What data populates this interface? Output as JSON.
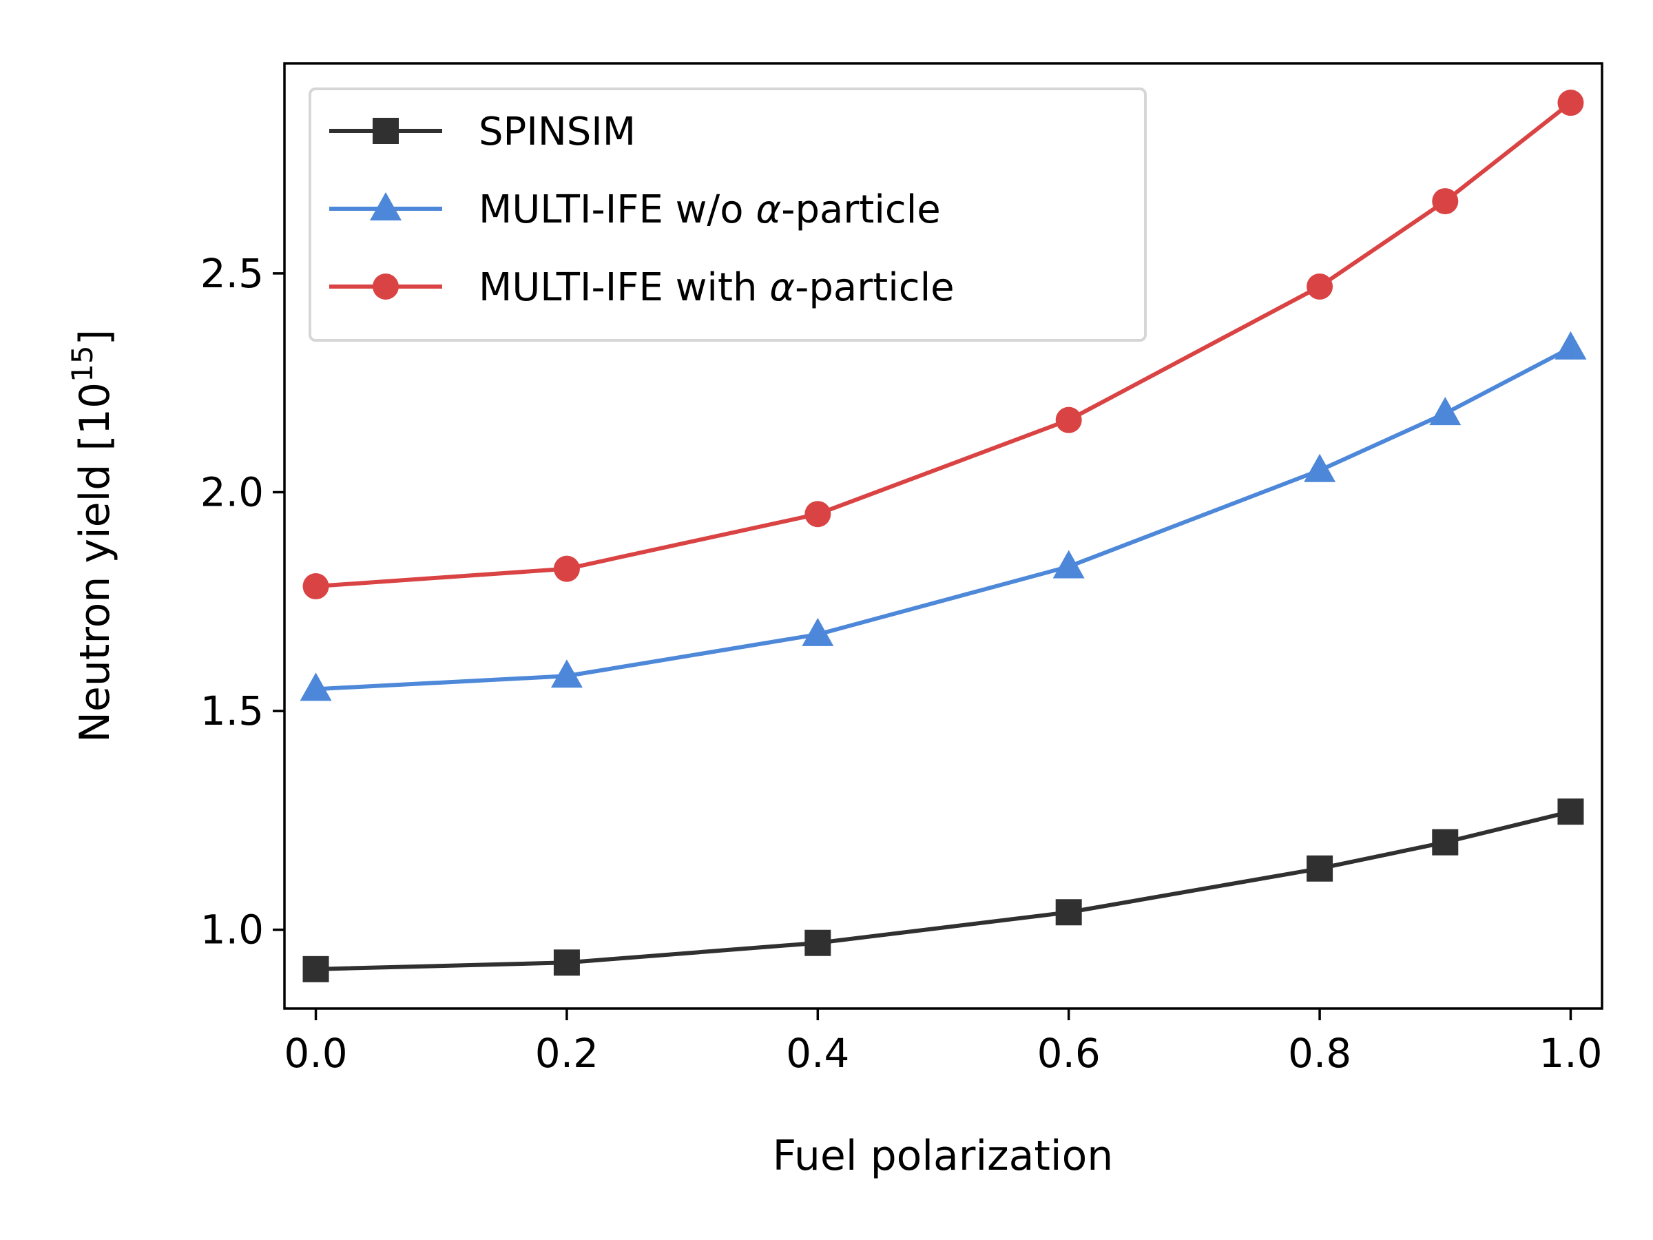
{
  "chart_data": {
    "type": "line",
    "title": "",
    "xlabel": "Fuel polarization",
    "ylabel": {
      "main": "Neutron yield [10",
      "exponent": "15",
      "close": "]"
    },
    "xlim": [
      -0.025,
      1.025
    ],
    "ylim": [
      0.82,
      2.98
    ],
    "x_ticks": [
      0.0,
      0.2,
      0.4,
      0.6,
      0.8,
      1.0
    ],
    "x_tick_labels": [
      "0.0",
      "0.2",
      "0.4",
      "0.6",
      "0.8",
      "1.0"
    ],
    "y_ticks": [
      1.0,
      1.5,
      2.0,
      2.5
    ],
    "y_tick_labels": [
      "1.0",
      "1.5",
      "2.0",
      "2.5"
    ],
    "grid": false,
    "legend_position": "top-left",
    "x": [
      0.0,
      0.2,
      0.4,
      0.6,
      0.8,
      0.9,
      1.0
    ],
    "series": [
      {
        "name": "SPINSIM",
        "name_parts": [
          "SPINSIM"
        ],
        "marker": "square",
        "color": "#1a1a1a",
        "values": [
          0.91,
          0.925,
          0.97,
          1.04,
          1.14,
          1.2,
          1.27
        ]
      },
      {
        "name": "MULTI-IFE w/o α-particle",
        "name_parts": [
          "MULTI-IFE w/o ",
          "α",
          "-particle"
        ],
        "marker": "triangle",
        "color": "#3a7bd5",
        "values": [
          1.55,
          1.58,
          1.675,
          1.83,
          2.05,
          2.18,
          2.33
        ]
      },
      {
        "name": "MULTI-IFE with α-particle",
        "name_parts": [
          "MULTI-IFE with ",
          "α",
          "-particle"
        ],
        "marker": "circle",
        "color": "#d62f2f",
        "values": [
          1.785,
          1.825,
          1.95,
          2.165,
          2.47,
          2.665,
          2.89
        ]
      }
    ]
  }
}
